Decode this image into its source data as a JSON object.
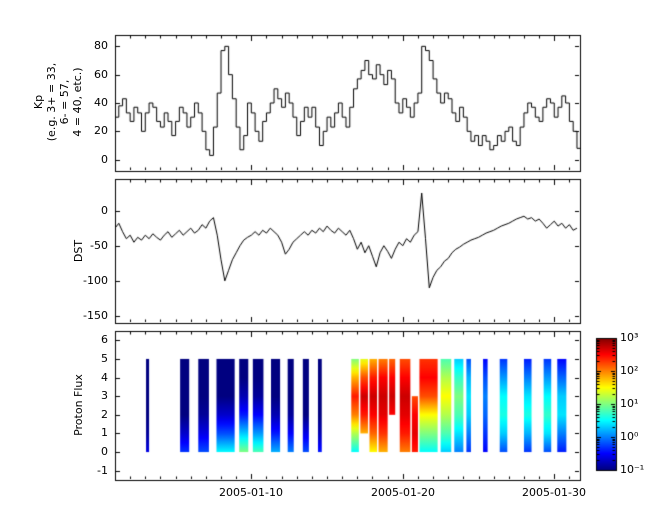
{
  "chart_data": [
    {
      "type": "line",
      "id": "kp",
      "ylabel": "Kp (e.g. 3+ = 33, 6- = 57, 4 = 40, etc.)",
      "ylabel_display": "Kp\n(e.g. 3+ = 33,\n6- = 57,\n4 = 40, etc.)",
      "draw_style": "steps-post",
      "line_color": "#000000",
      "x_start": 1.0,
      "x_step": 0.25,
      "x_unit": "day of 2005-01",
      "ylim": [
        -8,
        88
      ],
      "yticks": [
        0,
        20,
        40,
        60,
        80
      ],
      "values": [
        30,
        38,
        43,
        33,
        27,
        37,
        33,
        20,
        33,
        40,
        37,
        27,
        23,
        33,
        27,
        17,
        27,
        37,
        33,
        23,
        30,
        40,
        33,
        20,
        7,
        3,
        23,
        47,
        77,
        80,
        60,
        43,
        23,
        7,
        17,
        40,
        33,
        20,
        13,
        27,
        33,
        40,
        50,
        43,
        37,
        47,
        40,
        30,
        17,
        27,
        37,
        30,
        37,
        23,
        10,
        20,
        30,
        23,
        33,
        40,
        30,
        23,
        37,
        50,
        57,
        63,
        70,
        60,
        57,
        67,
        60,
        53,
        63,
        57,
        40,
        33,
        43,
        37,
        30,
        40,
        47,
        80,
        77,
        70,
        57,
        47,
        40,
        47,
        43,
        33,
        27,
        37,
        30,
        20,
        13,
        17,
        10,
        17,
        13,
        7,
        10,
        17,
        13,
        20,
        23,
        13,
        10,
        23,
        33,
        40,
        37,
        30,
        27,
        37,
        43,
        40,
        30,
        37,
        45,
        40,
        27,
        20,
        8
      ]
    },
    {
      "type": "line",
      "id": "dst",
      "ylabel": "DST",
      "draw_style": "linear",
      "line_color": "#000000",
      "x_start": 1.0,
      "x_step": 0.25,
      "x_unit": "day of 2005-01",
      "ylim": [
        -160,
        45
      ],
      "yticks": [
        0,
        -50,
        -100,
        -150
      ],
      "values": [
        -25,
        -18,
        -30,
        -40,
        -35,
        -45,
        -38,
        -42,
        -35,
        -40,
        -33,
        -38,
        -42,
        -35,
        -30,
        -38,
        -33,
        -28,
        -35,
        -30,
        -25,
        -32,
        -28,
        -20,
        -25,
        -15,
        -10,
        -35,
        -70,
        -100,
        -85,
        -70,
        -60,
        -50,
        -42,
        -38,
        -35,
        -30,
        -35,
        -28,
        -32,
        -25,
        -30,
        -35,
        -45,
        -62,
        -55,
        -45,
        -40,
        -35,
        -30,
        -35,
        -28,
        -32,
        -25,
        -30,
        -22,
        -28,
        -32,
        -25,
        -30,
        -35,
        -28,
        -40,
        -55,
        -45,
        -60,
        -50,
        -65,
        -80,
        -60,
        -50,
        -58,
        -68,
        -55,
        -45,
        -50,
        -40,
        -45,
        -35,
        -30,
        25,
        -40,
        -110,
        -95,
        -85,
        -80,
        -72,
        -68,
        -60,
        -55,
        -52,
        -48,
        -45,
        -42,
        -40,
        -38,
        -35,
        -32,
        -30,
        -28,
        -25,
        -22,
        -20,
        -18,
        -15,
        -12,
        -10,
        -8,
        -12,
        -10,
        -15,
        -12,
        -18,
        -25,
        -20,
        -15,
        -22,
        -18,
        -25,
        -20,
        -28,
        -25
      ]
    },
    {
      "type": "heatmap",
      "id": "flux",
      "ylabel": "Proton Flux",
      "colormap": "jet",
      "value_scale": "log10",
      "clim": [
        -1,
        3
      ],
      "ylim": [
        -1.5,
        6.5
      ],
      "yticks": [
        -1,
        0,
        1,
        2,
        3,
        4,
        5,
        6
      ],
      "bands": [
        {
          "t0": 3.05,
          "t1": 3.25,
          "ylo": 0,
          "yhi": 5,
          "v": [
            -0.6,
            -0.9,
            -1,
            -1,
            -1,
            -1
          ]
        },
        {
          "t0": 5.3,
          "t1": 5.9,
          "ylo": 0,
          "yhi": 5,
          "v": [
            -0.3,
            -0.7,
            -1,
            -1,
            -1,
            -1
          ]
        },
        {
          "t0": 6.5,
          "t1": 7.2,
          "ylo": 0,
          "yhi": 5,
          "v": [
            -0.2,
            -0.6,
            -0.9,
            -1,
            -1,
            -1
          ]
        },
        {
          "t0": 7.7,
          "t1": 8.9,
          "ylo": 0,
          "yhi": 5,
          "v": [
            0.5,
            -0.2,
            -0.7,
            -1,
            -1,
            -1
          ]
        },
        {
          "t0": 9.2,
          "t1": 9.8,
          "ylo": 0,
          "yhi": 5,
          "v": [
            1.0,
            0.3,
            -0.4,
            -0.8,
            -1,
            -1
          ]
        },
        {
          "t0": 10.1,
          "t1": 10.8,
          "ylo": 0,
          "yhi": 5,
          "v": [
            0.8,
            0.1,
            -0.5,
            -0.9,
            -1,
            -1
          ]
        },
        {
          "t0": 11.3,
          "t1": 11.9,
          "ylo": 0,
          "yhi": 5,
          "v": [
            0.2,
            -0.4,
            -0.8,
            -1,
            -1,
            -1
          ]
        },
        {
          "t0": 12.4,
          "t1": 12.8,
          "ylo": 0,
          "yhi": 5,
          "v": [
            0,
            -0.5,
            -0.9,
            -1,
            -1,
            -1
          ]
        },
        {
          "t0": 13.4,
          "t1": 13.8,
          "ylo": 0,
          "yhi": 5,
          "v": [
            -0.2,
            -0.6,
            -1,
            -1,
            -1,
            -1
          ]
        },
        {
          "t0": 14.4,
          "t1": 14.65,
          "ylo": 0,
          "yhi": 5,
          "v": [
            -0.4,
            -0.8,
            -1,
            -1,
            -1,
            -1
          ]
        },
        {
          "t0": 16.6,
          "t1": 17.1,
          "ylo": 0,
          "yhi": 5,
          "v": [
            0.5,
            1.2,
            2.0,
            2.4,
            1.8,
            1.0
          ]
        },
        {
          "t0": 17.2,
          "t1": 17.7,
          "ylo": 1,
          "yhi": 5,
          "v": [
            0,
            1.8,
            2.4,
            2.7,
            2.2,
            1.4
          ]
        },
        {
          "t0": 17.8,
          "t1": 18.3,
          "ylo": 0,
          "yhi": 5,
          "v": [
            1.5,
            2.1,
            2.5,
            2.7,
            2.4,
            1.8
          ]
        },
        {
          "t0": 18.4,
          "t1": 19.0,
          "ylo": 0,
          "yhi": 5,
          "v": [
            1.8,
            2.3,
            2.6,
            2.7,
            2.5,
            2.0
          ]
        },
        {
          "t0": 19.1,
          "t1": 19.5,
          "ylo": 2,
          "yhi": 5,
          "v": [
            0,
            0,
            2.5,
            2.7,
            2.5,
            2.1
          ]
        },
        {
          "t0": 19.8,
          "t1": 20.5,
          "ylo": 0,
          "yhi": 5,
          "v": [
            2.0,
            2.4,
            2.6,
            2.7,
            2.5,
            2.2
          ]
        },
        {
          "t0": 20.6,
          "t1": 21.0,
          "ylo": 0,
          "yhi": 3,
          "v": [
            2.4,
            2.6,
            2.5,
            2.2,
            0,
            0
          ]
        },
        {
          "t0": 21.1,
          "t1": 22.3,
          "ylo": 0,
          "yhi": 5,
          "v": [
            0.5,
            1.0,
            1.5,
            2.2,
            2.5,
            2.3
          ]
        },
        {
          "t0": 22.5,
          "t1": 23.2,
          "ylo": 0,
          "yhi": 5,
          "v": [
            0.3,
            0.8,
            1.2,
            1.5,
            1.2,
            0.8
          ]
        },
        {
          "t0": 23.4,
          "t1": 24.0,
          "ylo": 0,
          "yhi": 5,
          "v": [
            0,
            0.4,
            0.8,
            1.0,
            0.7,
            0.3
          ]
        },
        {
          "t0": 24.2,
          "t1": 24.5,
          "ylo": 0,
          "yhi": 5,
          "v": [
            -0.3,
            0,
            0.3,
            0.4,
            0.2,
            -0.2
          ]
        },
        {
          "t0": 25.3,
          "t1": 25.6,
          "ylo": 0,
          "yhi": 5,
          "v": [
            -0.5,
            -0.3,
            -0.1,
            0,
            -0.2,
            -0.5
          ]
        },
        {
          "t0": 26.4,
          "t1": 26.9,
          "ylo": 0,
          "yhi": 5,
          "v": [
            -0.2,
            0.3,
            0.6,
            0.5,
            0.1,
            -0.3
          ]
        },
        {
          "t0": 28.0,
          "t1": 28.5,
          "ylo": 0,
          "yhi": 5,
          "v": [
            -0.3,
            0.2,
            0.6,
            0.4,
            0,
            -0.4
          ]
        },
        {
          "t0": 29.3,
          "t1": 29.8,
          "ylo": 0,
          "yhi": 5,
          "v": [
            -0.2,
            0.4,
            0.7,
            0.5,
            0.1,
            -0.3
          ]
        },
        {
          "t0": 30.2,
          "t1": 30.8,
          "ylo": 0,
          "yhi": 5,
          "v": [
            -0.4,
            0,
            0.4,
            0.3,
            -0.1,
            -0.5
          ]
        }
      ]
    }
  ],
  "xaxis": {
    "lim": [
      1.0,
      31.7
    ],
    "major_ticks": [
      {
        "t": 10,
        "label": "2005-01-10"
      },
      {
        "t": 20,
        "label": "2005-01-20"
      },
      {
        "t": 30,
        "label": "2005-01-30"
      }
    ],
    "minor_tick_step": 1
  },
  "colorbar": {
    "orientation": "vertical",
    "colormap": "jet",
    "scale": "log",
    "ticks": [
      {
        "log": 3,
        "label": "10³"
      },
      {
        "log": 2,
        "label": "10²"
      },
      {
        "log": 1,
        "label": "10¹"
      },
      {
        "log": 0,
        "label": "10⁰"
      },
      {
        "log": -1,
        "label": "10⁻¹"
      }
    ]
  },
  "colors": {
    "line": "#000000",
    "frame": "#000000",
    "background": "#ffffff"
  }
}
